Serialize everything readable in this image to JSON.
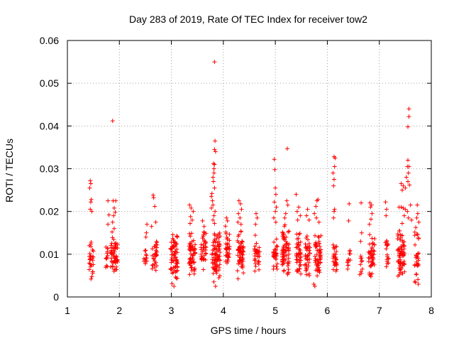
{
  "chart_data": {
    "type": "scatter",
    "title": "Day 283 of 2019, Rate Of TEC Index for receiver tow2",
    "xlabel": "GPS time / hours",
    "ylabel": "ROTI / TECUs",
    "xlim": [
      1,
      8
    ],
    "ylim": [
      0,
      0.06
    ],
    "x_ticks": [
      1,
      2,
      3,
      4,
      5,
      6,
      7,
      8
    ],
    "y_ticks": [
      0,
      0.01,
      0.02,
      0.03,
      0.04,
      0.05,
      0.06
    ],
    "x_tick_labels": [
      "1",
      "2",
      "3",
      "4",
      "5",
      "6",
      "7",
      "8"
    ],
    "y_tick_labels": [
      "0",
      "0.01",
      "0.02",
      "0.03",
      "0.04",
      "0.05",
      "0.06"
    ],
    "grid": true,
    "marker": "+",
    "color": "#ff0000",
    "clusters": [
      {
        "x": 1.46,
        "width": 0.08,
        "ymin": 0.004,
        "ymax": 0.0135,
        "count": 28
      },
      {
        "x": 1.75,
        "width": 0.06,
        "ymin": 0.005,
        "ymax": 0.0135,
        "count": 12
      },
      {
        "x": 1.9,
        "width": 0.14,
        "ymin": 0.005,
        "ymax": 0.014,
        "count": 55
      },
      {
        "x": 2.5,
        "width": 0.06,
        "ymin": 0.007,
        "ymax": 0.0115,
        "count": 12
      },
      {
        "x": 2.68,
        "width": 0.1,
        "ymin": 0.0045,
        "ymax": 0.014,
        "count": 30
      },
      {
        "x": 3.05,
        "width": 0.14,
        "ymin": 0.003,
        "ymax": 0.0155,
        "count": 70
      },
      {
        "x": 3.4,
        "width": 0.12,
        "ymin": 0.004,
        "ymax": 0.016,
        "count": 60
      },
      {
        "x": 3.62,
        "width": 0.1,
        "ymin": 0.005,
        "ymax": 0.0155,
        "count": 40
      },
      {
        "x": 3.86,
        "width": 0.16,
        "ymin": 0.003,
        "ymax": 0.016,
        "count": 80
      },
      {
        "x": 4.08,
        "width": 0.08,
        "ymin": 0.005,
        "ymax": 0.0175,
        "count": 35
      },
      {
        "x": 4.33,
        "width": 0.12,
        "ymin": 0.004,
        "ymax": 0.016,
        "count": 60
      },
      {
        "x": 4.65,
        "width": 0.1,
        "ymin": 0.004,
        "ymax": 0.015,
        "count": 35
      },
      {
        "x": 5.0,
        "width": 0.08,
        "ymin": 0.004,
        "ymax": 0.0145,
        "count": 30
      },
      {
        "x": 5.2,
        "width": 0.14,
        "ymin": 0.003,
        "ymax": 0.0175,
        "count": 70
      },
      {
        "x": 5.45,
        "width": 0.1,
        "ymin": 0.004,
        "ymax": 0.016,
        "count": 45
      },
      {
        "x": 5.62,
        "width": 0.1,
        "ymin": 0.004,
        "ymax": 0.0155,
        "count": 40
      },
      {
        "x": 5.82,
        "width": 0.12,
        "ymin": 0.003,
        "ymax": 0.015,
        "count": 55
      },
      {
        "x": 6.15,
        "width": 0.08,
        "ymin": 0.005,
        "ymax": 0.0135,
        "count": 30
      },
      {
        "x": 6.42,
        "width": 0.06,
        "ymin": 0.006,
        "ymax": 0.013,
        "count": 12
      },
      {
        "x": 6.65,
        "width": 0.06,
        "ymin": 0.004,
        "ymax": 0.0115,
        "count": 10
      },
      {
        "x": 6.85,
        "width": 0.12,
        "ymin": 0.004,
        "ymax": 0.015,
        "count": 45
      },
      {
        "x": 7.15,
        "width": 0.06,
        "ymin": 0.005,
        "ymax": 0.0155,
        "count": 18
      },
      {
        "x": 7.42,
        "width": 0.14,
        "ymin": 0.004,
        "ymax": 0.016,
        "count": 70
      },
      {
        "x": 7.72,
        "width": 0.08,
        "ymin": 0.003,
        "ymax": 0.0165,
        "count": 30
      }
    ],
    "outliers": [
      [
        1.44,
        0.0272
      ],
      [
        1.45,
        0.0265
      ],
      [
        1.43,
        0.0255
      ],
      [
        1.46,
        0.0228
      ],
      [
        1.45,
        0.0222
      ],
      [
        1.44,
        0.0205
      ],
      [
        1.47,
        0.02
      ],
      [
        1.78,
        0.0225
      ],
      [
        1.8,
        0.0192
      ],
      [
        1.78,
        0.017
      ],
      [
        1.87,
        0.0412
      ],
      [
        1.88,
        0.0225
      ],
      [
        1.93,
        0.0225
      ],
      [
        1.9,
        0.0208
      ],
      [
        1.92,
        0.0198
      ],
      [
        1.89,
        0.019
      ],
      [
        1.87,
        0.0175
      ],
      [
        1.9,
        0.016
      ],
      [
        1.86,
        0.0152
      ],
      [
        2.53,
        0.017
      ],
      [
        2.52,
        0.015
      ],
      [
        2.51,
        0.014
      ],
      [
        2.65,
        0.0238
      ],
      [
        2.66,
        0.0232
      ],
      [
        2.68,
        0.0212
      ],
      [
        2.7,
        0.0175
      ],
      [
        2.62,
        0.0165
      ],
      [
        3.05,
        0.0025
      ],
      [
        3.35,
        0.0215
      ],
      [
        3.38,
        0.0208
      ],
      [
        3.42,
        0.02
      ],
      [
        3.37,
        0.0188
      ],
      [
        3.4,
        0.018
      ],
      [
        3.36,
        0.0172
      ],
      [
        3.6,
        0.0178
      ],
      [
        3.63,
        0.0165
      ],
      [
        3.83,
        0.055
      ],
      [
        3.84,
        0.0365
      ],
      [
        3.83,
        0.0345
      ],
      [
        3.85,
        0.034
      ],
      [
        3.81,
        0.0312
      ],
      [
        3.83,
        0.031
      ],
      [
        3.82,
        0.03
      ],
      [
        3.82,
        0.029
      ],
      [
        3.8,
        0.028
      ],
      [
        3.81,
        0.027
      ],
      [
        3.83,
        0.0255
      ],
      [
        3.78,
        0.0242
      ],
      [
        3.77,
        0.0235
      ],
      [
        3.79,
        0.0225
      ],
      [
        3.8,
        0.0215
      ],
      [
        3.77,
        0.0208
      ],
      [
        3.84,
        0.02
      ],
      [
        3.82,
        0.019
      ],
      [
        3.8,
        0.018
      ],
      [
        3.83,
        0.0172
      ],
      [
        3.85,
        0.0025
      ],
      [
        4.06,
        0.0185
      ],
      [
        4.08,
        0.0178
      ],
      [
        4.3,
        0.0225
      ],
      [
        4.33,
        0.0218
      ],
      [
        4.35,
        0.0205
      ],
      [
        4.29,
        0.0195
      ],
      [
        4.32,
        0.0185
      ],
      [
        4.28,
        0.0175
      ],
      [
        4.34,
        0.017
      ],
      [
        4.63,
        0.0195
      ],
      [
        4.65,
        0.0185
      ],
      [
        4.62,
        0.017
      ],
      [
        4.98,
        0.0322
      ],
      [
        4.99,
        0.0298
      ],
      [
        5.0,
        0.0255
      ],
      [
        5.01,
        0.024
      ],
      [
        4.98,
        0.0222
      ],
      [
        5.02,
        0.021
      ],
      [
        5.0,
        0.02
      ],
      [
        4.97,
        0.0185
      ],
      [
        5.01,
        0.0175
      ],
      [
        5.23,
        0.0347
      ],
      [
        5.22,
        0.0225
      ],
      [
        5.24,
        0.0215
      ],
      [
        5.2,
        0.0195
      ],
      [
        5.18,
        0.0185
      ],
      [
        5.4,
        0.024
      ],
      [
        5.45,
        0.021
      ],
      [
        5.42,
        0.02
      ],
      [
        5.48,
        0.019
      ],
      [
        5.43,
        0.018
      ],
      [
        5.62,
        0.0205
      ],
      [
        5.6,
        0.019
      ],
      [
        5.65,
        0.018
      ],
      [
        5.82,
        0.0228
      ],
      [
        5.8,
        0.0225
      ],
      [
        5.78,
        0.0212
      ],
      [
        5.75,
        0.0195
      ],
      [
        5.79,
        0.0185
      ],
      [
        5.84,
        0.0175
      ],
      [
        5.74,
        0.003
      ],
      [
        5.76,
        0.0025
      ],
      [
        6.13,
        0.0328
      ],
      [
        6.15,
        0.0325
      ],
      [
        6.14,
        0.0305
      ],
      [
        6.11,
        0.029
      ],
      [
        6.13,
        0.0275
      ],
      [
        6.12,
        0.026
      ],
      [
        6.14,
        0.0205
      ],
      [
        6.13,
        0.02
      ],
      [
        6.12,
        0.0185
      ],
      [
        6.42,
        0.0218
      ],
      [
        6.41,
        0.0178
      ],
      [
        6.65,
        0.022
      ],
      [
        6.66,
        0.015
      ],
      [
        6.64,
        0.013
      ],
      [
        6.82,
        0.022
      ],
      [
        6.85,
        0.0215
      ],
      [
        6.83,
        0.021
      ],
      [
        6.86,
        0.0195
      ],
      [
        6.84,
        0.0182
      ],
      [
        6.81,
        0.017
      ],
      [
        7.12,
        0.0222
      ],
      [
        7.14,
        0.0205
      ],
      [
        7.13,
        0.019
      ],
      [
        7.57,
        0.044
      ],
      [
        7.57,
        0.0422
      ],
      [
        7.55,
        0.0398
      ],
      [
        7.55,
        0.032
      ],
      [
        7.54,
        0.0305
      ],
      [
        7.57,
        0.0305
      ],
      [
        7.56,
        0.029
      ],
      [
        7.52,
        0.028
      ],
      [
        7.55,
        0.027
      ],
      [
        7.58,
        0.0262
      ],
      [
        7.5,
        0.0255
      ],
      [
        7.46,
        0.026
      ],
      [
        7.42,
        0.0265
      ],
      [
        7.44,
        0.025
      ],
      [
        7.38,
        0.021
      ],
      [
        7.42,
        0.021
      ],
      [
        7.46,
        0.0208
      ],
      [
        7.5,
        0.0205
      ],
      [
        7.6,
        0.0215
      ],
      [
        7.54,
        0.02
      ],
      [
        7.48,
        0.019
      ],
      [
        7.56,
        0.0185
      ],
      [
        7.62,
        0.018
      ],
      [
        7.44,
        0.0172
      ],
      [
        7.73,
        0.0215
      ],
      [
        7.74,
        0.0195
      ],
      [
        7.72,
        0.0185
      ],
      [
        7.76,
        0.0175
      ],
      [
        7.75,
        0.003
      ]
    ]
  }
}
